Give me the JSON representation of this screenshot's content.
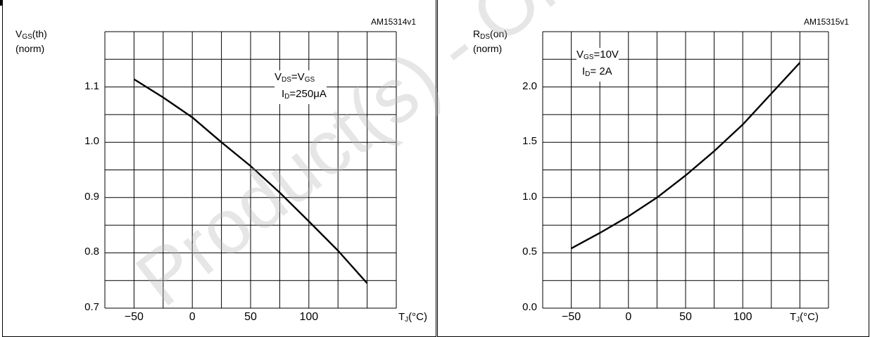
{
  "chart_data": [
    {
      "type": "line",
      "id_label": "AM15314v1",
      "ylabel": {
        "main": "V",
        "sub": "GS",
        "tail": "(th)",
        "line2": "(norm)"
      },
      "xlabel": {
        "main": "T",
        "sub": "J",
        "tail": "(°C)"
      },
      "annotation": {
        "line1": {
          "a": "V",
          "a_sub": "DS",
          "eq": "=V",
          "b_sub": "GS"
        },
        "line2": {
          "a": "I",
          "a_sub": "D",
          "eq": "=250μA"
        }
      },
      "xticks": [
        "-50",
        "0",
        "50",
        "100"
      ],
      "yticks": [
        "0.7",
        "0.8",
        "0.9",
        "1.0",
        "1.1"
      ],
      "xlim": [
        -75,
        175
      ],
      "ylim": [
        0.7,
        1.2
      ],
      "series": [
        {
          "x": [
            -50,
            -25,
            0,
            25,
            50,
            75,
            100,
            125,
            150
          ],
          "y": [
            1.114,
            1.081,
            1.045,
            1.0,
            0.957,
            0.909,
            0.857,
            0.804,
            0.745
          ]
        }
      ]
    },
    {
      "type": "line",
      "id_label": "AM15315v1",
      "ylabel": {
        "main": "R",
        "sub": "DS",
        "tail": "(on)",
        "line2": "(norm)"
      },
      "xlabel": {
        "main": "T",
        "sub": "J",
        "tail": "(°C)"
      },
      "annotation": {
        "line1": {
          "a": "V",
          "a_sub": "GS",
          "eq": "=10V"
        },
        "line2": {
          "a": "I",
          "a_sub": "D",
          "eq": "= 2A"
        }
      },
      "xticks": [
        "-50",
        "0",
        "50",
        "100"
      ],
      "yticks": [
        "0.0",
        "0.5",
        "1.0",
        "1.5",
        "2.0"
      ],
      "xlim": [
        -75,
        175
      ],
      "ylim": [
        0.0,
        2.5
      ],
      "series": [
        {
          "x": [
            -50,
            -25,
            0,
            25,
            50,
            75,
            100,
            125,
            150
          ],
          "y": [
            0.54,
            0.68,
            0.83,
            1.0,
            1.2,
            1.42,
            1.66,
            1.94,
            2.22
          ]
        }
      ]
    }
  ],
  "watermark": "Product(s) - Obsolete Product(s)"
}
